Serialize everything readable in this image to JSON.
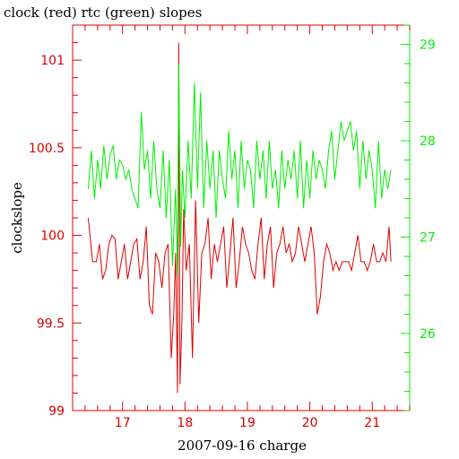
{
  "chart_data": {
    "type": "line",
    "title": "clock (red) rtc (green) slopes",
    "xlabel": "2007-09-16 charge",
    "ylabel": "clockslope",
    "xlim": [
      16.2,
      21.6
    ],
    "ylim_left": [
      99,
      101.2
    ],
    "ylim_right": [
      25.2,
      29.2
    ],
    "x_ticks": [
      "17",
      "18",
      "19",
      "20",
      "21"
    ],
    "y_ticks_left": [
      "99",
      "99.5",
      "100",
      "100.5",
      "101"
    ],
    "y_ticks_right": [
      "26",
      "27",
      "28",
      "29"
    ],
    "colors": {
      "clock": "#dd0000",
      "rtc": "#00ee00",
      "axes": "#dd0000",
      "right_axis": "#00ee00"
    },
    "series": [
      {
        "name": "clock",
        "axis": "left",
        "x": [
          16.45,
          16.52,
          16.58,
          16.63,
          16.68,
          16.73,
          16.78,
          16.83,
          16.88,
          16.93,
          16.98,
          17.03,
          17.08,
          17.13,
          17.18,
          17.23,
          17.28,
          17.33,
          17.38,
          17.43,
          17.48,
          17.53,
          17.58,
          17.63,
          17.68,
          17.73,
          17.78,
          17.82,
          17.85,
          17.88,
          17.9,
          17.92,
          17.95,
          17.98,
          18.02,
          18.07,
          18.12,
          18.17,
          18.22,
          18.27,
          18.32,
          18.37,
          18.42,
          18.47,
          18.52,
          18.57,
          18.62,
          18.67,
          18.72,
          18.77,
          18.82,
          18.87,
          18.92,
          18.97,
          19.02,
          19.07,
          19.12,
          19.17,
          19.22,
          19.27,
          19.32,
          19.37,
          19.42,
          19.47,
          19.52,
          19.57,
          19.62,
          19.67,
          19.72,
          19.77,
          19.82,
          19.87,
          19.92,
          19.97,
          20.02,
          20.07,
          20.12,
          20.17,
          20.22,
          20.27,
          20.32,
          20.37,
          20.42,
          20.47,
          20.52,
          20.57,
          20.62,
          20.67,
          20.72,
          20.77,
          20.82,
          20.87,
          20.92,
          20.97,
          21.02,
          21.07,
          21.12,
          21.17,
          21.22,
          21.27,
          21.3
        ],
        "values": [
          100.1,
          99.85,
          99.85,
          99.95,
          99.75,
          99.8,
          99.95,
          100,
          99.98,
          99.75,
          99.85,
          99.95,
          99.75,
          99.85,
          99.95,
          99.98,
          99.75,
          99.85,
          100.05,
          99.6,
          99.55,
          99.9,
          99.85,
          99.7,
          99.9,
          99.95,
          99.3,
          99.55,
          99.9,
          99.1,
          101.1,
          99.15,
          99.5,
          100.15,
          99.8,
          99.95,
          99.3,
          100.2,
          99.5,
          99.9,
          99.95,
          100.1,
          99.75,
          99.95,
          99.85,
          99.95,
          100.05,
          99.7,
          99.9,
          100.1,
          99.7,
          99.85,
          100.05,
          99.95,
          99.9,
          99.8,
          99.75,
          99.95,
          100.1,
          99.75,
          99.95,
          100.05,
          99.7,
          99.9,
          99.95,
          100.05,
          99.9,
          99.95,
          99.85,
          99.9,
          100.05,
          99.95,
          99.85,
          99.95,
          100.05,
          99.9,
          99.55,
          99.65,
          99.85,
          99.95,
          99.9,
          99.8,
          99.85,
          99.8,
          99.85,
          99.85,
          99.85,
          99.8,
          99.9,
          100,
          99.85,
          99.85,
          99.8,
          99.85,
          99.95,
          99.85,
          99.85,
          99.9,
          99.85,
          100.05,
          99.85
        ]
      },
      {
        "name": "rtc",
        "axis": "right",
        "x": [
          16.45,
          16.5,
          16.55,
          16.6,
          16.65,
          16.7,
          16.75,
          16.8,
          16.85,
          16.9,
          16.95,
          17,
          17.05,
          17.1,
          17.15,
          17.2,
          17.25,
          17.3,
          17.35,
          17.4,
          17.45,
          17.5,
          17.55,
          17.6,
          17.65,
          17.7,
          17.75,
          17.8,
          17.85,
          17.88,
          17.9,
          17.93,
          17.96,
          18,
          18.05,
          18.1,
          18.15,
          18.2,
          18.25,
          18.3,
          18.35,
          18.4,
          18.45,
          18.5,
          18.55,
          18.6,
          18.65,
          18.7,
          18.75,
          18.8,
          18.85,
          18.9,
          18.95,
          19,
          19.05,
          19.1,
          19.15,
          19.2,
          19.25,
          19.3,
          19.35,
          19.4,
          19.45,
          19.5,
          19.55,
          19.6,
          19.65,
          19.7,
          19.75,
          19.8,
          19.85,
          19.9,
          19.95,
          20,
          20.05,
          20.1,
          20.15,
          20.2,
          20.25,
          20.3,
          20.35,
          20.4,
          20.45,
          20.5,
          20.55,
          20.6,
          20.65,
          20.7,
          20.75,
          20.8,
          20.85,
          20.9,
          20.95,
          21,
          21.05,
          21.1,
          21.15,
          21.2,
          21.25,
          21.3
        ],
        "values": [
          27.5,
          27.9,
          27.4,
          27.8,
          27.5,
          27.95,
          27.6,
          27.85,
          27.95,
          27.6,
          27.8,
          27.75,
          27.6,
          27.7,
          27.5,
          27.4,
          27.3,
          28.3,
          27.7,
          27.9,
          27.4,
          28,
          27.5,
          27.3,
          27.9,
          27.2,
          27.8,
          26.7,
          27.5,
          26.6,
          28.8,
          26.9,
          27.7,
          27.2,
          28.0,
          27.4,
          28.6,
          27.5,
          28.5,
          27.3,
          28.0,
          27.5,
          27.9,
          27.2,
          27.9,
          27.6,
          27.4,
          28.1,
          27.6,
          27.9,
          27.3,
          28,
          27.5,
          27.8,
          27.7,
          27.3,
          28,
          27.6,
          27.9,
          27.4,
          28,
          27.5,
          27.7,
          27.3,
          27.9,
          27.5,
          27.8,
          27.6,
          27.9,
          27.4,
          28,
          27.3,
          27.8,
          27.4,
          27.9,
          27.6,
          27.8,
          27.7,
          27.5,
          27.9,
          28.1,
          27.6,
          27.9,
          28.2,
          28.0,
          28.1,
          28.2,
          27.9,
          28.1,
          27.5,
          28.0,
          27.6,
          27.9,
          27.7,
          27.3,
          28.0,
          27.4,
          27.7,
          27.5,
          27.7
        ]
      }
    ]
  }
}
